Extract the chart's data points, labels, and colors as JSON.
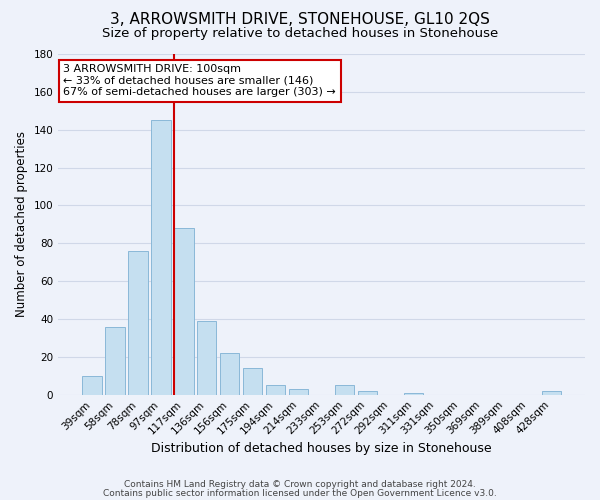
{
  "title": "3, ARROWSMITH DRIVE, STONEHOUSE, GL10 2QS",
  "subtitle": "Size of property relative to detached houses in Stonehouse",
  "xlabel": "Distribution of detached houses by size in Stonehouse",
  "ylabel": "Number of detached properties",
  "bar_labels": [
    "39sqm",
    "58sqm",
    "78sqm",
    "97sqm",
    "117sqm",
    "136sqm",
    "156sqm",
    "175sqm",
    "194sqm",
    "214sqm",
    "233sqm",
    "253sqm",
    "272sqm",
    "292sqm",
    "311sqm",
    "331sqm",
    "350sqm",
    "369sqm",
    "389sqm",
    "408sqm",
    "428sqm"
  ],
  "bar_values": [
    10,
    36,
    76,
    145,
    88,
    39,
    22,
    14,
    5,
    3,
    0,
    5,
    2,
    0,
    1,
    0,
    0,
    0,
    0,
    0,
    2
  ],
  "bar_color": "#c5dff0",
  "bar_edge_color": "#8ab8d8",
  "vline_x_index": 4,
  "vline_color": "#cc0000",
  "annotation_text": "3 ARROWSMITH DRIVE: 100sqm\n← 33% of detached houses are smaller (146)\n67% of semi-detached houses are larger (303) →",
  "annotation_box_color": "#ffffff",
  "annotation_box_edge_color": "#cc0000",
  "ylim": [
    0,
    180
  ],
  "yticks": [
    0,
    20,
    40,
    60,
    80,
    100,
    120,
    140,
    160,
    180
  ],
  "footer_line1": "Contains HM Land Registry data © Crown copyright and database right 2024.",
  "footer_line2": "Contains public sector information licensed under the Open Government Licence v3.0.",
  "background_color": "#eef2fa",
  "grid_color": "#d0d8e8",
  "title_fontsize": 11,
  "subtitle_fontsize": 9.5,
  "xlabel_fontsize": 9,
  "ylabel_fontsize": 8.5,
  "tick_fontsize": 7.5,
  "footer_fontsize": 6.5
}
